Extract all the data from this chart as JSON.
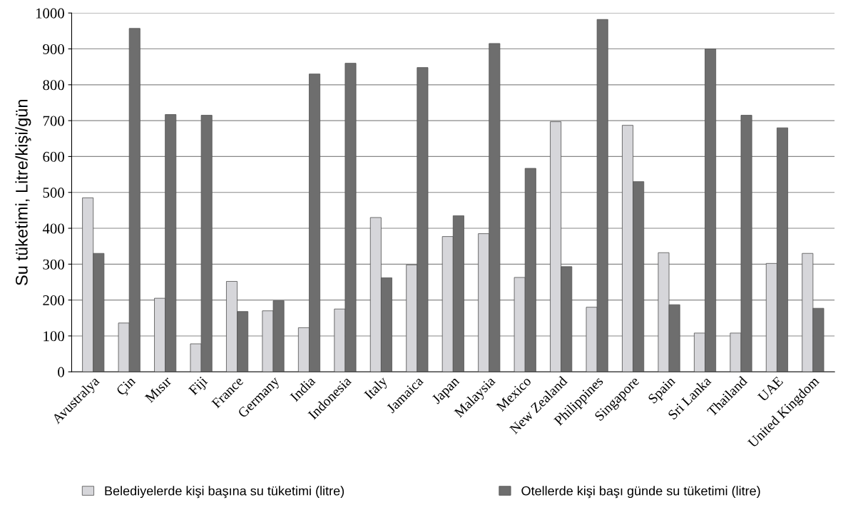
{
  "chart_data": {
    "type": "bar",
    "ylabel": "Su tüketimi, Litre/kişi/gün",
    "categories": [
      "Avustralya",
      "Çin",
      "Mısır",
      "Fiji",
      "France",
      "Germany",
      "India",
      "Indonesia",
      "Italy",
      "Jamaica",
      "Japan",
      "Malaysia",
      "Mexico",
      "New Zealand",
      "Philippines",
      "Singapore",
      "Spain",
      "Sri Lanka",
      "Thailand",
      "UAE",
      "United Kingdom"
    ],
    "series": [
      {
        "name": "Belediyelerde kişi başına su tüketimi (litre)",
        "color": "#d6d6da",
        "values": [
          485,
          136,
          205,
          78,
          252,
          170,
          123,
          175,
          430,
          298,
          377,
          385,
          263,
          697,
          180,
          687,
          332,
          108,
          108,
          302,
          330
        ]
      },
      {
        "name": "Otellerde kişi başı günde su tüketimi (litre)",
        "color": "#6e6e6e",
        "values": [
          330,
          957,
          717,
          715,
          168,
          198,
          830,
          860,
          262,
          848,
          435,
          915,
          567,
          293,
          982,
          530,
          187,
          900,
          715,
          680,
          177
        ]
      }
    ],
    "ylim": [
      0,
      1000
    ],
    "yticks": [
      0,
      100,
      200,
      300,
      400,
      500,
      600,
      700,
      800,
      900,
      1000
    ],
    "grid": "y",
    "legend": "bottom"
  }
}
